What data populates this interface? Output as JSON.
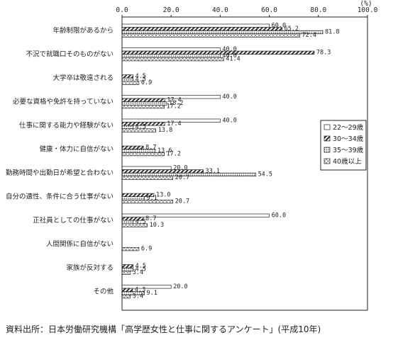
{
  "chart_data": {
    "type": "bar",
    "orientation": "horizontal",
    "unit": "(%)",
    "xlim": [
      0,
      100
    ],
    "xticks": [
      "0.0",
      "20.0",
      "40.0",
      "60.0",
      "80.0",
      "100.0"
    ],
    "grid": false,
    "legend_position": "right",
    "categories": [
      "年齢制限があるから",
      "不況で就職口そのものがない",
      "大学卒は敬遠される",
      "必要な資格や免許を持っていない",
      "仕事に関する能力や経験がない",
      "健康・体力に自信がない",
      "勤務時間や出勤日が希望と合わない",
      "自分の適性、条件に合う仕事がない",
      "正社員としての仕事がない",
      "人間関係に自信がない",
      "家族が反対する",
      "その他"
    ],
    "series": [
      {
        "name": "22～29歳",
        "color": "#ffffff",
        "values": [
          60.0,
          40.0,
          null,
          40.0,
          40.0,
          null,
          20.0,
          null,
          60.0,
          null,
          null,
          20.0
        ]
      },
      {
        "name": "30～34歳",
        "color": "#555555",
        "values": [
          65.2,
          78.3,
          4.5,
          17.4,
          17.4,
          8.7,
          33.1,
          13.0,
          8.7,
          null,
          4.5,
          4.3
        ]
      },
      {
        "name": "35～39歳",
        "color": "#999999",
        "values": [
          81.8,
          40.0,
          4.5,
          18.2,
          4.5,
          13.6,
          54.5,
          9.1,
          4.5,
          null,
          4.5,
          9.1
        ]
      },
      {
        "name": "40歳以上",
        "color": "#bbbbbb",
        "values": [
          72.4,
          41.4,
          6.9,
          17.2,
          13.8,
          17.2,
          20.7,
          20.7,
          10.3,
          6.9,
          3.4,
          3.4
        ]
      }
    ],
    "value_labels": [
      [
        "60.0",
        "40.0",
        "",
        "40.0",
        "40.0",
        "",
        "20.0",
        "",
        "60.0",
        "",
        "",
        "20.0"
      ],
      [
        "65.2",
        "78.3",
        "4.5",
        "17.4",
        "17.4",
        "8.7",
        "33.1",
        "13.0",
        "8.7",
        "",
        "4.5",
        "4.3"
      ],
      [
        "81.8",
        "40.0",
        "4.5",
        "18.2",
        "4.5",
        "13.6",
        "54.5",
        "9.1",
        "4.5",
        "",
        "4.5",
        "9.1"
      ],
      [
        "72.4",
        "41.4",
        "6.9",
        "17.2",
        "13.8",
        "17.2",
        "20.7",
        "20.7",
        "10.3",
        "6.9",
        "3.4",
        "3.4"
      ]
    ]
  },
  "source": "資料出所：日本労働研究機構「高学歴女性と仕事に関するアンケート」(平成10年)"
}
